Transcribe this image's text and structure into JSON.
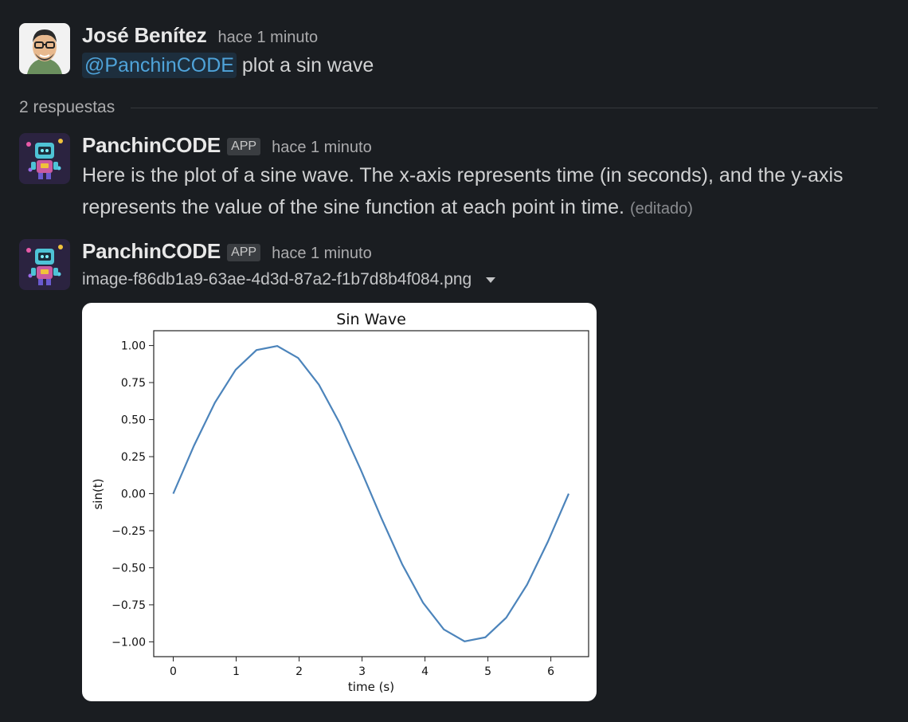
{
  "message1": {
    "author": "José Benítez",
    "time": "hace 1 minuto",
    "mention": "@PanchinCODE",
    "text": "plot a sin wave"
  },
  "thread": {
    "reply_count": "2 respuestas"
  },
  "reply1": {
    "author": "PanchinCODE",
    "badge": "APP",
    "time": "hace 1 minuto",
    "line1": "Here is the plot of a sine wave. The x-axis represents time (in seconds), and the y-axis",
    "line2": "represents the value of the sine function at each point in time.",
    "edited": "(editado)"
  },
  "reply2": {
    "author": "PanchinCODE",
    "badge": "APP",
    "time": "hace 1 minuto",
    "filename": "image-f86db1a9-63ae-4d3d-87a2-f1b7d8b4f084.png",
    "file_menu_icon": "caret-down-icon"
  },
  "colors": {
    "background": "#1a1d21",
    "mention": "#4fa3d9",
    "line": "#4c84bb"
  },
  "chart_data": {
    "type": "line",
    "title": "Sin Wave",
    "xlabel": "time (s)",
    "ylabel": "sin(t)",
    "xlim": [
      -0.31,
      6.6
    ],
    "ylim": [
      -1.1,
      1.1
    ],
    "xticks": [
      0,
      1,
      2,
      3,
      4,
      5,
      6
    ],
    "yticks": [
      "1.00",
      "0.75",
      "0.50",
      "0.25",
      "0.00",
      "−0.25",
      "−0.50",
      "−0.75",
      "−1.00"
    ],
    "ytick_values": [
      1.0,
      0.75,
      0.5,
      0.25,
      0.0,
      -0.25,
      -0.5,
      -0.75,
      -1.0
    ],
    "series": [
      {
        "x": [
          0,
          0.3307,
          0.6614,
          0.9921,
          1.3228,
          1.6535,
          1.9842,
          2.3149,
          2.6456,
          2.9762,
          3.3069,
          3.6376,
          3.9683,
          4.299,
          4.6297,
          4.9604,
          5.2911,
          5.6218,
          5.9525,
          6.2832
        ],
        "y": [
          0.0,
          0.3247,
          0.6142,
          0.8372,
          0.9694,
          0.9966,
          0.9158,
          0.7357,
          0.4759,
          0.1646,
          -0.1646,
          -0.4759,
          -0.7357,
          -0.9158,
          -0.9966,
          -0.9694,
          -0.8372,
          -0.6142,
          -0.3247,
          0.0
        ]
      }
    ],
    "grid": false,
    "legend": false
  }
}
